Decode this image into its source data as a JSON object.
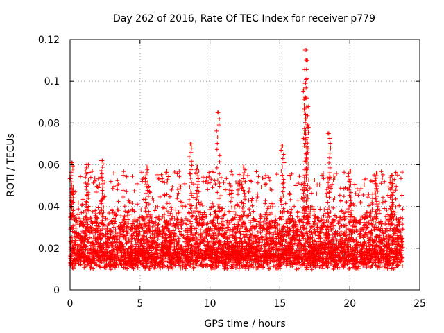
{
  "chart_data": {
    "type": "scatter",
    "title": "Day 262 of 2016, Rate Of TEC Index for receiver p779",
    "xlabel": "GPS time / hours",
    "ylabel": "ROTI / TECUs",
    "xlim": [
      0,
      25
    ],
    "ylim": [
      0,
      0.12
    ],
    "x_ticks": [
      0,
      5,
      10,
      15,
      20,
      25
    ],
    "x_tick_labels": [
      "0",
      "5",
      "10",
      "15",
      "20",
      "25"
    ],
    "y_ticks": [
      0,
      0.02,
      0.04,
      0.06,
      0.08,
      0.1,
      0.12
    ],
    "y_tick_labels": [
      "0",
      "0.02",
      "0.04",
      "0.06",
      "0.08",
      "0.1",
      "0.12"
    ],
    "grid": true,
    "marker": "+",
    "color": "#ff0000",
    "series": [
      {
        "name": "ROTI",
        "x_range": [
          0,
          23.8
        ],
        "typical_range": [
          0.005,
          0.045
        ],
        "peaks": [
          {
            "x": 0.1,
            "y": 0.061
          },
          {
            "x": 1.2,
            "y": 0.06
          },
          {
            "x": 2.3,
            "y": 0.062
          },
          {
            "x": 5.5,
            "y": 0.059
          },
          {
            "x": 8.6,
            "y": 0.07
          },
          {
            "x": 9.1,
            "y": 0.059
          },
          {
            "x": 10.6,
            "y": 0.085
          },
          {
            "x": 12.4,
            "y": 0.059
          },
          {
            "x": 15.2,
            "y": 0.069
          },
          {
            "x": 16.8,
            "y": 0.115
          },
          {
            "x": 16.9,
            "y": 0.11
          },
          {
            "x": 16.8,
            "y": 0.099
          },
          {
            "x": 16.85,
            "y": 0.092
          },
          {
            "x": 17.0,
            "y": 0.078
          },
          {
            "x": 18.5,
            "y": 0.075
          },
          {
            "x": 20.0,
            "y": 0.057
          },
          {
            "x": 21.9,
            "y": 0.056
          },
          {
            "x": 23.0,
            "y": 0.055
          }
        ]
      }
    ]
  }
}
